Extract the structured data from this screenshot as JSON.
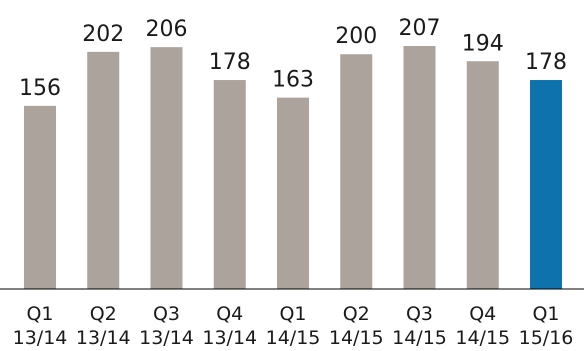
{
  "chart_data": {
    "type": "bar",
    "title": "",
    "xlabel": "",
    "ylabel": "",
    "categories": [
      [
        "Q1",
        "13/14"
      ],
      [
        "Q2",
        "13/14"
      ],
      [
        "Q3",
        "13/14"
      ],
      [
        "Q4",
        "13/14"
      ],
      [
        "Q1",
        "14/15"
      ],
      [
        "Q2",
        "14/15"
      ],
      [
        "Q3",
        "14/15"
      ],
      [
        "Q4",
        "14/15"
      ],
      [
        "Q1",
        "15/16"
      ]
    ],
    "values": [
      156,
      202,
      206,
      178,
      163,
      200,
      207,
      194,
      178
    ],
    "ylim": [
      0,
      207
    ],
    "grid": false,
    "legend": "none",
    "colors": {
      "default_bar": "#aba39c",
      "highlight_bar": "#0e72ad",
      "axis": "#000000"
    },
    "highlight_index": 8
  }
}
